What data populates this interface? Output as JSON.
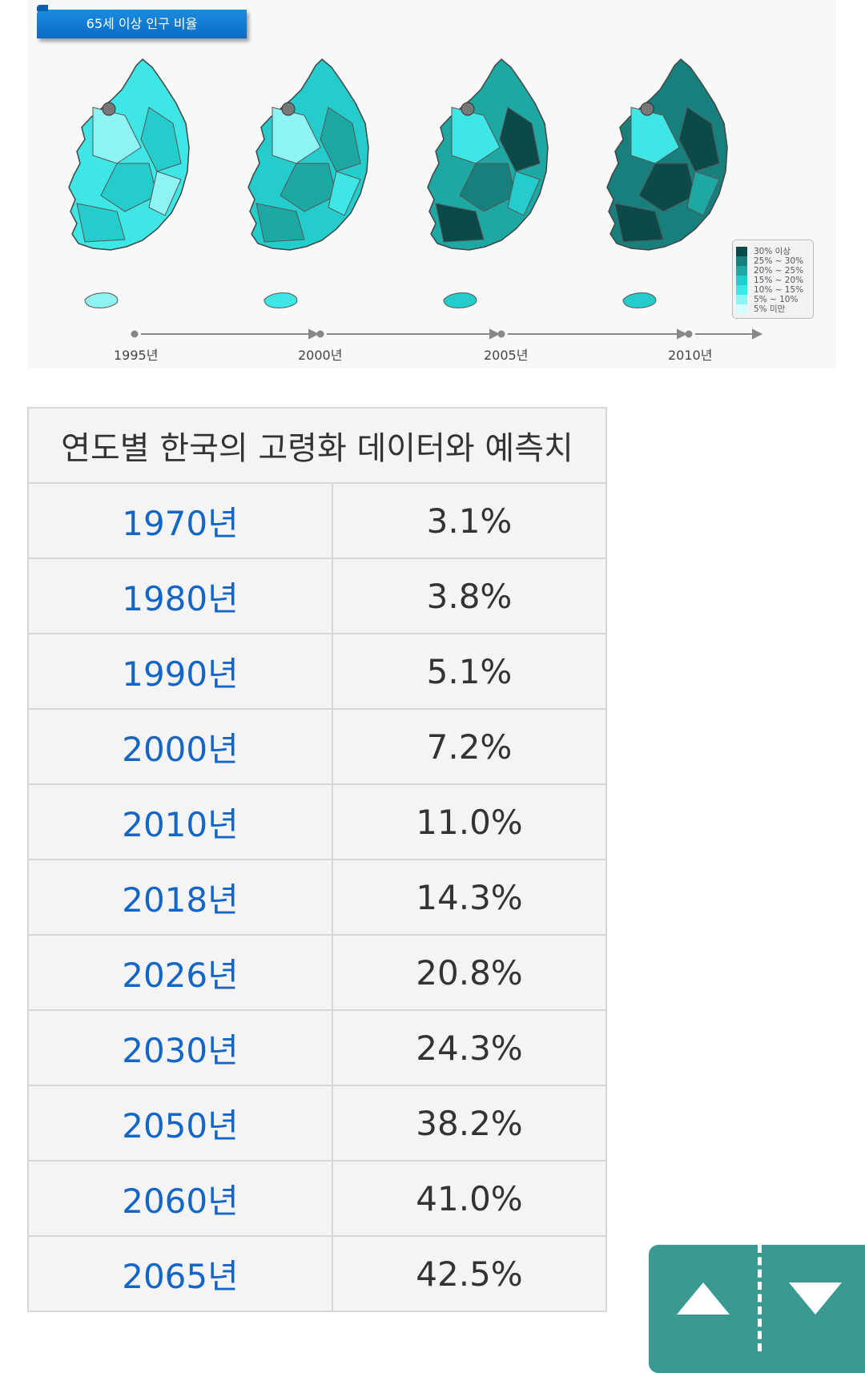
{
  "figure": {
    "title": "65세 이상 인구 비율",
    "years": [
      "1995년",
      "2000년",
      "2005년",
      "2010년"
    ],
    "legend": [
      {
        "label": "30% 이상",
        "color": "#0b4a48"
      },
      {
        "label": "25% ~ 30%",
        "color": "#17807d"
      },
      {
        "label": "20% ~ 25%",
        "color": "#1ea8a4"
      },
      {
        "label": "15% ~ 20%",
        "color": "#24cccc"
      },
      {
        "label": "10% ~ 15%",
        "color": "#3fe6e6"
      },
      {
        "label": "5% ~ 10%",
        "color": "#8ef3f3"
      },
      {
        "label": "5% 미만",
        "color": "#d6fbfb"
      }
    ]
  },
  "table": {
    "title": "연도별 한국의 고령화 데이터와 예측치",
    "rows": [
      {
        "year": "1970년",
        "value": "3.1%"
      },
      {
        "year": "1980년",
        "value": "3.8%"
      },
      {
        "year": "1990년",
        "value": "5.1%"
      },
      {
        "year": "2000년",
        "value": "7.2%"
      },
      {
        "year": "2010년",
        "value": "11.0%"
      },
      {
        "year": "2018년",
        "value": "14.3%"
      },
      {
        "year": "2026년",
        "value": "20.8%"
      },
      {
        "year": "2030년",
        "value": "24.3%"
      },
      {
        "year": "2050년",
        "value": "38.2%"
      },
      {
        "year": "2060년",
        "value": "41.0%"
      },
      {
        "year": "2065년",
        "value": "42.5%"
      }
    ]
  },
  "scroll": {
    "up_icon": "triangle-up-icon",
    "down_icon": "triangle-down-icon",
    "color": "#3a9a91"
  }
}
